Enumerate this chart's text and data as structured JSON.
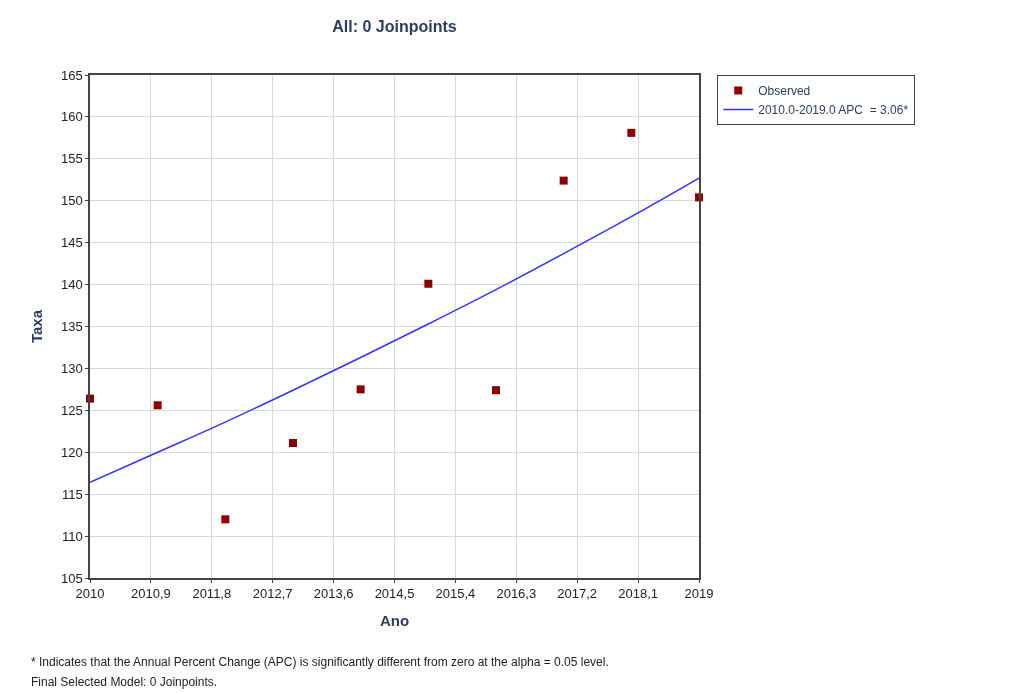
{
  "chart_data": {
    "type": "scatter",
    "title": "All: 0 Joinpoints",
    "xlabel": "Ano",
    "ylabel": "Taxa",
    "x": [
      2010,
      2011,
      2012,
      2013,
      2014,
      2015,
      2016,
      2017,
      2018,
      2019
    ],
    "series": [
      {
        "name": "Observed",
        "color": "#8b0000",
        "marker": "square",
        "values": [
          126.4,
          125.6,
          112.0,
          121.1,
          127.5,
          140.1,
          127.4,
          152.4,
          158.1,
          150.4
        ]
      },
      {
        "name": "2010.0-2019.0 APC  = 3.06*",
        "type": "line",
        "color": "#3333ff",
        "line_style": "solid",
        "values": [
          116.4,
          120.0,
          123.6,
          127.4,
          131.3,
          135.3,
          139.4,
          143.7,
          148.1,
          152.7
        ]
      }
    ],
    "xlim": [
      2010,
      2019
    ],
    "ylim": [
      105,
      165
    ],
    "xticks": [
      2010,
      {
        "value": 2010.9,
        "label": "2010,9"
      },
      {
        "value": 2011.8,
        "label": "2011,8"
      },
      {
        "value": 2012.7,
        "label": "2012,7"
      },
      {
        "value": 2013.6,
        "label": "2013,6"
      },
      {
        "value": 2014.5,
        "label": "2014,5"
      },
      {
        "value": 2015.4,
        "label": "2015,4"
      },
      {
        "value": 2016.3,
        "label": "2016,3"
      },
      {
        "value": 2017.2,
        "label": "2017,2"
      },
      {
        "value": 2018.1,
        "label": "2018,1"
      },
      2019
    ],
    "yticks": [
      105,
      110,
      115,
      120,
      125,
      130,
      135,
      140,
      145,
      150,
      155,
      160,
      165
    ],
    "grid": true,
    "legend": "top right",
    "annotations": [
      "* Indicates that the Annual Percent Change (APC) is significantly different from zero at the alpha = 0.05 level.",
      "Final Selected Model: 0 Joinpoints."
    ]
  }
}
